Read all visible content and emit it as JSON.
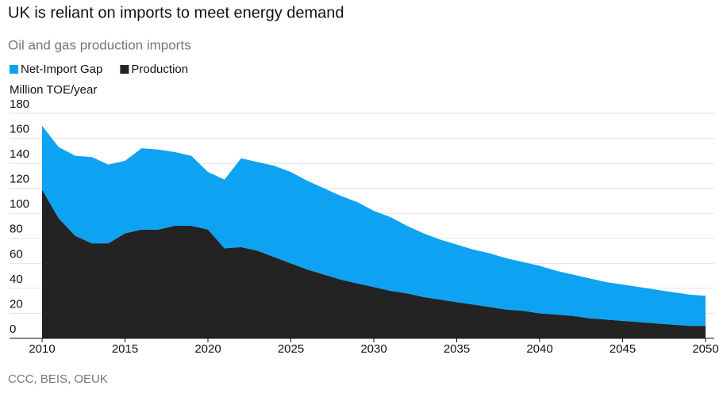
{
  "chart_data": {
    "type": "stacked_area",
    "title": "UK is reliant on imports to meet energy demand",
    "subtitle": "Oil and gas production imports",
    "y_label": "Million TOE/year",
    "source": "CCC, BEIS, OEUK",
    "x": [
      2010,
      2011,
      2012,
      2013,
      2014,
      2015,
      2016,
      2017,
      2018,
      2019,
      2020,
      2021,
      2022,
      2023,
      2024,
      2025,
      2026,
      2027,
      2028,
      2029,
      2030,
      2031,
      2032,
      2033,
      2034,
      2035,
      2036,
      2037,
      2038,
      2039,
      2040,
      2041,
      2042,
      2043,
      2044,
      2045,
      2046,
      2047,
      2048,
      2049,
      2050
    ],
    "series": [
      {
        "name": "Net-Import Gap",
        "color": "#0ea2f2",
        "values": [
          51,
          57,
          64,
          69,
          63,
          58,
          65,
          64,
          59,
          56,
          46,
          55,
          71,
          71,
          73,
          73,
          71,
          69,
          67,
          65,
          61,
          59,
          54,
          51,
          48,
          46,
          44,
          43,
          41,
          39,
          38,
          35,
          33,
          32,
          30,
          29,
          28,
          27,
          26,
          25,
          24
        ]
      },
      {
        "name": "Production",
        "color": "#232323",
        "values": [
          119,
          96,
          82,
          76,
          76,
          84,
          87,
          87,
          90,
          90,
          87,
          72,
          73,
          70,
          65,
          60,
          55,
          51,
          47,
          44,
          41,
          38,
          36,
          33,
          31,
          29,
          27,
          25,
          23,
          22,
          20,
          19,
          18,
          16,
          15,
          14,
          13,
          12,
          11,
          10,
          10
        ]
      }
    ],
    "xlim": [
      2010,
      2050
    ],
    "xticks": [
      2010,
      2015,
      2020,
      2025,
      2030,
      2035,
      2040,
      2045,
      2050
    ],
    "ylim": [
      0,
      180
    ],
    "yticks": [
      0,
      20,
      40,
      60,
      80,
      100,
      120,
      140,
      160,
      180
    ],
    "grid": true
  }
}
